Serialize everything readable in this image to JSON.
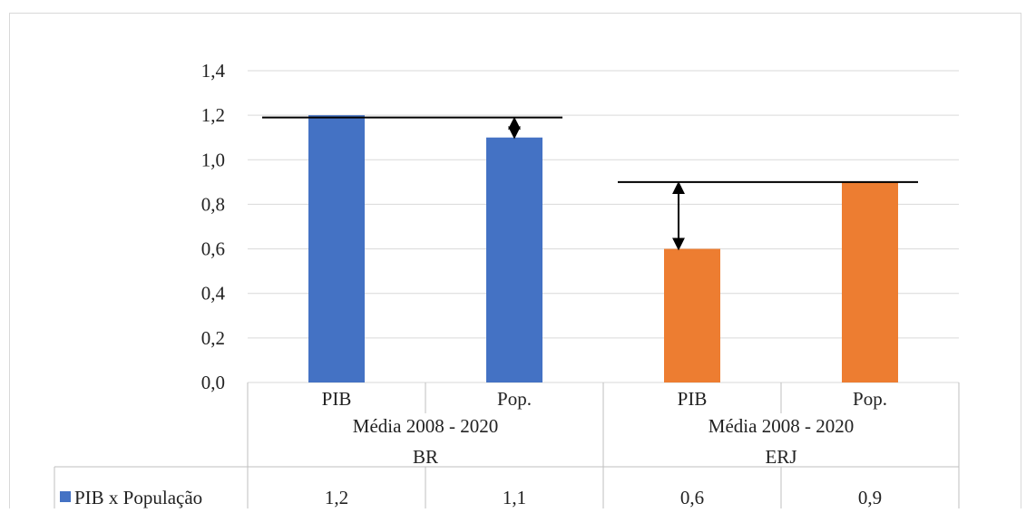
{
  "chart_data": {
    "type": "bar",
    "categories": [
      "PIB",
      "Pop.",
      "PIB",
      "Pop."
    ],
    "period_labels": [
      "Média 2008 - 2020",
      "Média 2008 - 2020"
    ],
    "group_labels": [
      "BR",
      "ERJ"
    ],
    "group_of_category": [
      0,
      0,
      1,
      1
    ],
    "series": [
      {
        "name": "PIB x População",
        "values": [
          1.2,
          1.1,
          0.6,
          0.9
        ],
        "value_labels": [
          "1,2",
          "1,1",
          "0,6",
          "0,9"
        ],
        "colors": [
          "#4472C4",
          "#4472C4",
          "#ED7D31",
          "#ED7D31"
        ]
      }
    ],
    "ylim": [
      0,
      1.4
    ],
    "yticks": [
      "0,0",
      "0,2",
      "0,4",
      "0,6",
      "0,8",
      "1,0",
      "1,2",
      "1,4"
    ],
    "grid": true,
    "legend_position": "data-table",
    "annotations": [
      {
        "type": "reference-line",
        "value": 1.19,
        "from_category": 0,
        "to_category": 1
      },
      {
        "type": "double-arrow",
        "category": 1,
        "from": 1.1,
        "to": 1.19
      },
      {
        "type": "reference-line",
        "value": 0.9,
        "from_category": 2,
        "to_category": 3
      },
      {
        "type": "double-arrow",
        "category": 2,
        "from": 0.6,
        "to": 0.9
      }
    ]
  }
}
